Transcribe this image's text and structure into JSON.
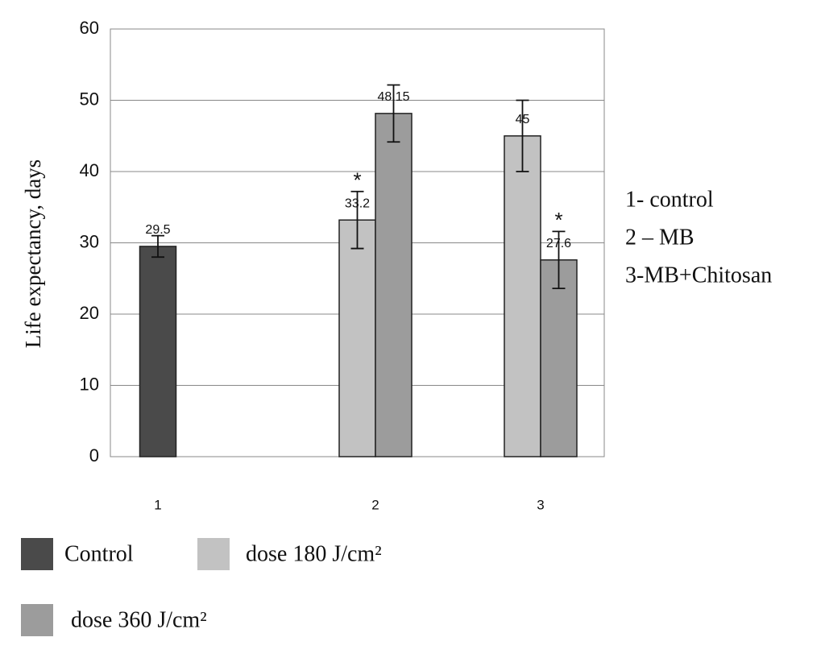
{
  "chart_data": {
    "type": "bar",
    "y_label": "Life expectancy, days",
    "categories": [
      "1",
      "2",
      "3"
    ],
    "series": [
      {
        "name": "Control",
        "color": "#4a4a4a",
        "values": [
          29.5,
          null,
          null
        ],
        "errors": [
          1.5,
          null,
          null
        ],
        "marks": [
          null,
          null,
          null
        ]
      },
      {
        "name": "dose 180 J/cm²",
        "color": "#c2c2c2",
        "values": [
          null,
          33.2,
          45
        ],
        "errors": [
          null,
          4,
          5
        ],
        "marks": [
          null,
          "*",
          null
        ]
      },
      {
        "name": "dose 360 J/cm²",
        "color": "#9c9c9c",
        "values": [
          null,
          48.15,
          27.6
        ],
        "errors": [
          null,
          4,
          4
        ],
        "marks": [
          null,
          null,
          "*"
        ]
      }
    ],
    "ylim": [
      0,
      60
    ],
    "yticks": [
      0,
      10,
      20,
      30,
      40,
      50,
      60
    ],
    "grid": true,
    "annotations": [
      "1- control",
      "2 – MB",
      "3-MB+Chitosan"
    ]
  }
}
